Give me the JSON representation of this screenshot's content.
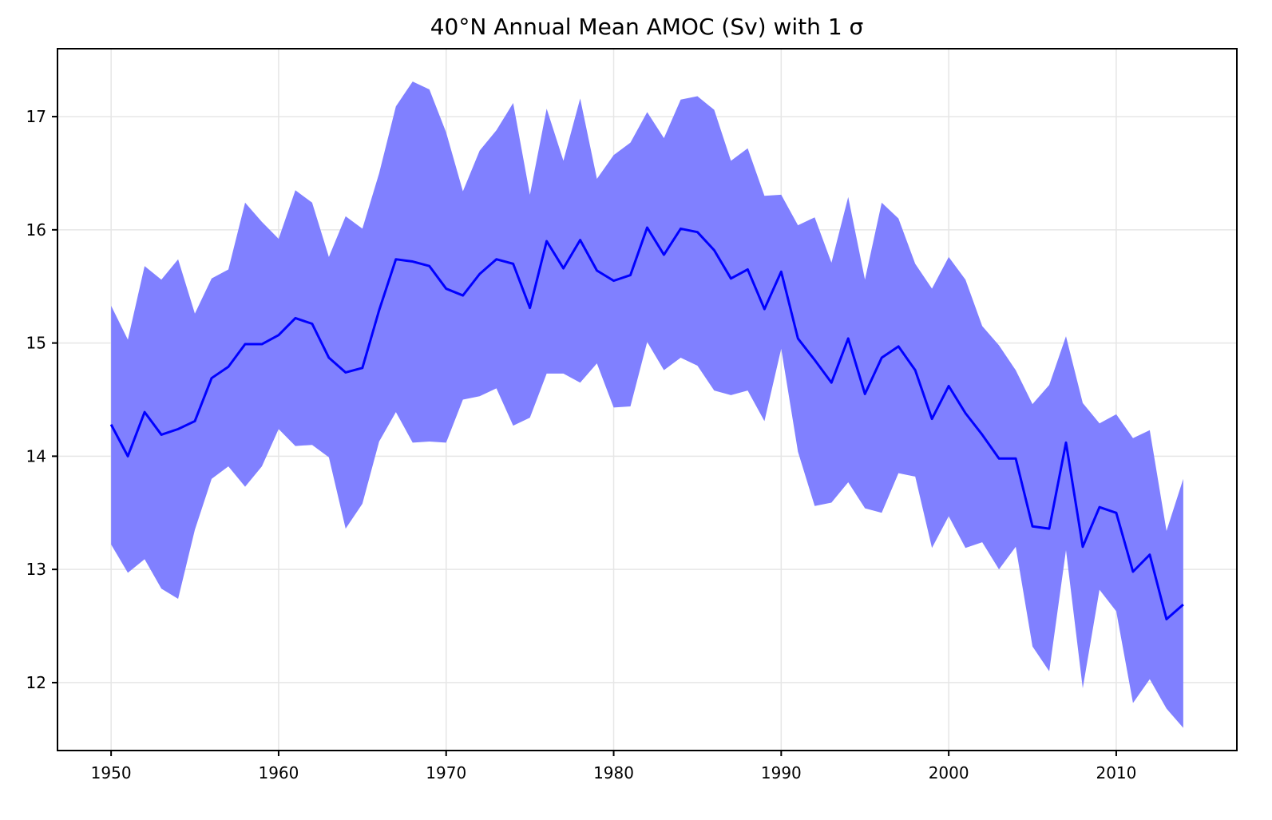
{
  "chart_data": {
    "type": "line",
    "title": "40°N Annual Mean AMOC (Sv) with 1 σ",
    "xlabel": "",
    "ylabel": "",
    "xlim": [
      1946.8,
      2017.2
    ],
    "ylim": [
      11.4,
      17.6
    ],
    "x_ticks": [
      1950,
      1960,
      1970,
      1980,
      1990,
      2000,
      2010
    ],
    "y_ticks": [
      12,
      13,
      14,
      15,
      16,
      17
    ],
    "grid": true,
    "legend": "none",
    "colors": {
      "line": "#0000ff",
      "band": "#8080ff",
      "grid": "#e6e6e6",
      "frame": "#000000"
    },
    "x": [
      1950,
      1951,
      1952,
      1953,
      1954,
      1955,
      1956,
      1957,
      1958,
      1959,
      1960,
      1961,
      1962,
      1963,
      1964,
      1965,
      1966,
      1967,
      1968,
      1969,
      1970,
      1971,
      1972,
      1973,
      1974,
      1975,
      1976,
      1977,
      1978,
      1979,
      1980,
      1981,
      1982,
      1983,
      1984,
      1985,
      1986,
      1987,
      1988,
      1989,
      1990,
      1991,
      1992,
      1993,
      1994,
      1995,
      1996,
      1997,
      1998,
      1999,
      2000,
      2001,
      2002,
      2003,
      2004,
      2005,
      2006,
      2007,
      2008,
      2009,
      2010,
      2011,
      2012,
      2013,
      2014
    ],
    "series": [
      {
        "name": "",
        "values": [
          14.28,
          14.0,
          14.39,
          14.19,
          14.24,
          14.31,
          14.69,
          14.79,
          14.99,
          14.99,
          15.07,
          15.22,
          15.17,
          14.87,
          14.74,
          14.78,
          15.29,
          15.74,
          15.72,
          15.68,
          15.48,
          15.42,
          15.61,
          15.74,
          15.7,
          15.31,
          15.9,
          15.66,
          15.91,
          15.64,
          15.55,
          15.6,
          16.02,
          15.78,
          16.01,
          15.98,
          15.82,
          15.57,
          15.65,
          15.3,
          15.63,
          15.04,
          14.85,
          14.65,
          15.04,
          14.55,
          14.87,
          14.97,
          14.76,
          14.33,
          14.62,
          14.38,
          14.19,
          13.98,
          13.98,
          13.38,
          13.36,
          14.12,
          13.2,
          13.55,
          13.5,
          12.98,
          13.13,
          12.56,
          12.69
        ],
        "upper": [
          15.33,
          15.03,
          15.68,
          15.56,
          15.74,
          15.26,
          15.57,
          15.65,
          16.24,
          16.07,
          15.92,
          16.35,
          16.24,
          15.76,
          16.12,
          16.01,
          16.5,
          17.09,
          17.31,
          17.24,
          16.86,
          16.34,
          16.7,
          16.88,
          17.12,
          16.31,
          17.07,
          16.61,
          17.16,
          16.45,
          16.66,
          16.77,
          17.04,
          16.81,
          17.15,
          17.18,
          17.06,
          16.61,
          16.72,
          16.3,
          16.31,
          16.04,
          16.11,
          15.71,
          16.29,
          15.56,
          16.24,
          16.1,
          15.7,
          15.48,
          15.76,
          15.56,
          15.15,
          14.98,
          14.76,
          14.46,
          14.63,
          15.06,
          14.47,
          14.29,
          14.37,
          14.16,
          14.23,
          13.34,
          13.8
        ],
        "lower": [
          13.22,
          12.97,
          13.09,
          12.83,
          12.74,
          13.35,
          13.8,
          13.91,
          13.73,
          13.91,
          14.24,
          14.09,
          14.1,
          13.99,
          13.36,
          13.58,
          14.13,
          14.39,
          14.12,
          14.13,
          14.12,
          14.5,
          14.53,
          14.6,
          14.27,
          14.34,
          14.73,
          14.73,
          14.65,
          14.82,
          14.43,
          14.44,
          15.01,
          14.76,
          14.87,
          14.8,
          14.58,
          14.54,
          14.58,
          14.31,
          14.95,
          14.04,
          13.56,
          13.59,
          13.77,
          13.54,
          13.5,
          13.85,
          13.82,
          13.19,
          13.47,
          13.19,
          13.24,
          13.0,
          13.2,
          12.32,
          12.1,
          13.17,
          11.95,
          12.82,
          12.63,
          11.82,
          12.03,
          11.77,
          11.6
        ]
      }
    ]
  }
}
